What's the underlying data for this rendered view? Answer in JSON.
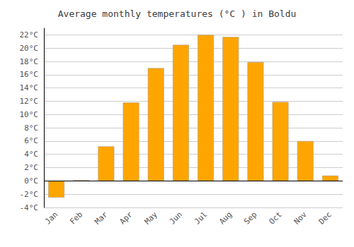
{
  "chart_data": {
    "type": "bar",
    "title": "Average monthly temperatures (°C ) in Boldu",
    "categories": [
      "Jan",
      "Feb",
      "Mar",
      "Apr",
      "May",
      "Jun",
      "Jul",
      "Aug",
      "Sep",
      "Oct",
      "Nov",
      "Dec"
    ],
    "values": [
      -2.5,
      0.1,
      5.2,
      11.8,
      17.0,
      20.5,
      22.0,
      21.7,
      17.9,
      11.9,
      6.0,
      0.8
    ],
    "color": "#FFA500",
    "ylim": [
      -4,
      23
    ],
    "yticks": [
      {
        "value": -4,
        "label": "-4°C"
      },
      {
        "value": -2,
        "label": "-2°C"
      },
      {
        "value": 0,
        "label": "0°C"
      },
      {
        "value": 2,
        "label": "2°C"
      },
      {
        "value": 4,
        "label": "4°C"
      },
      {
        "value": 6,
        "label": "6°C"
      },
      {
        "value": 8,
        "label": "8°C"
      },
      {
        "value": 10,
        "label": "10°C"
      },
      {
        "value": 12,
        "label": "12°C"
      },
      {
        "value": 14,
        "label": "14°C"
      },
      {
        "value": 16,
        "label": "16°C"
      },
      {
        "value": 18,
        "label": "18°C"
      },
      {
        "value": 20,
        "label": "20°C"
      },
      {
        "value": 22,
        "label": "22°C"
      }
    ],
    "grid": true
  }
}
